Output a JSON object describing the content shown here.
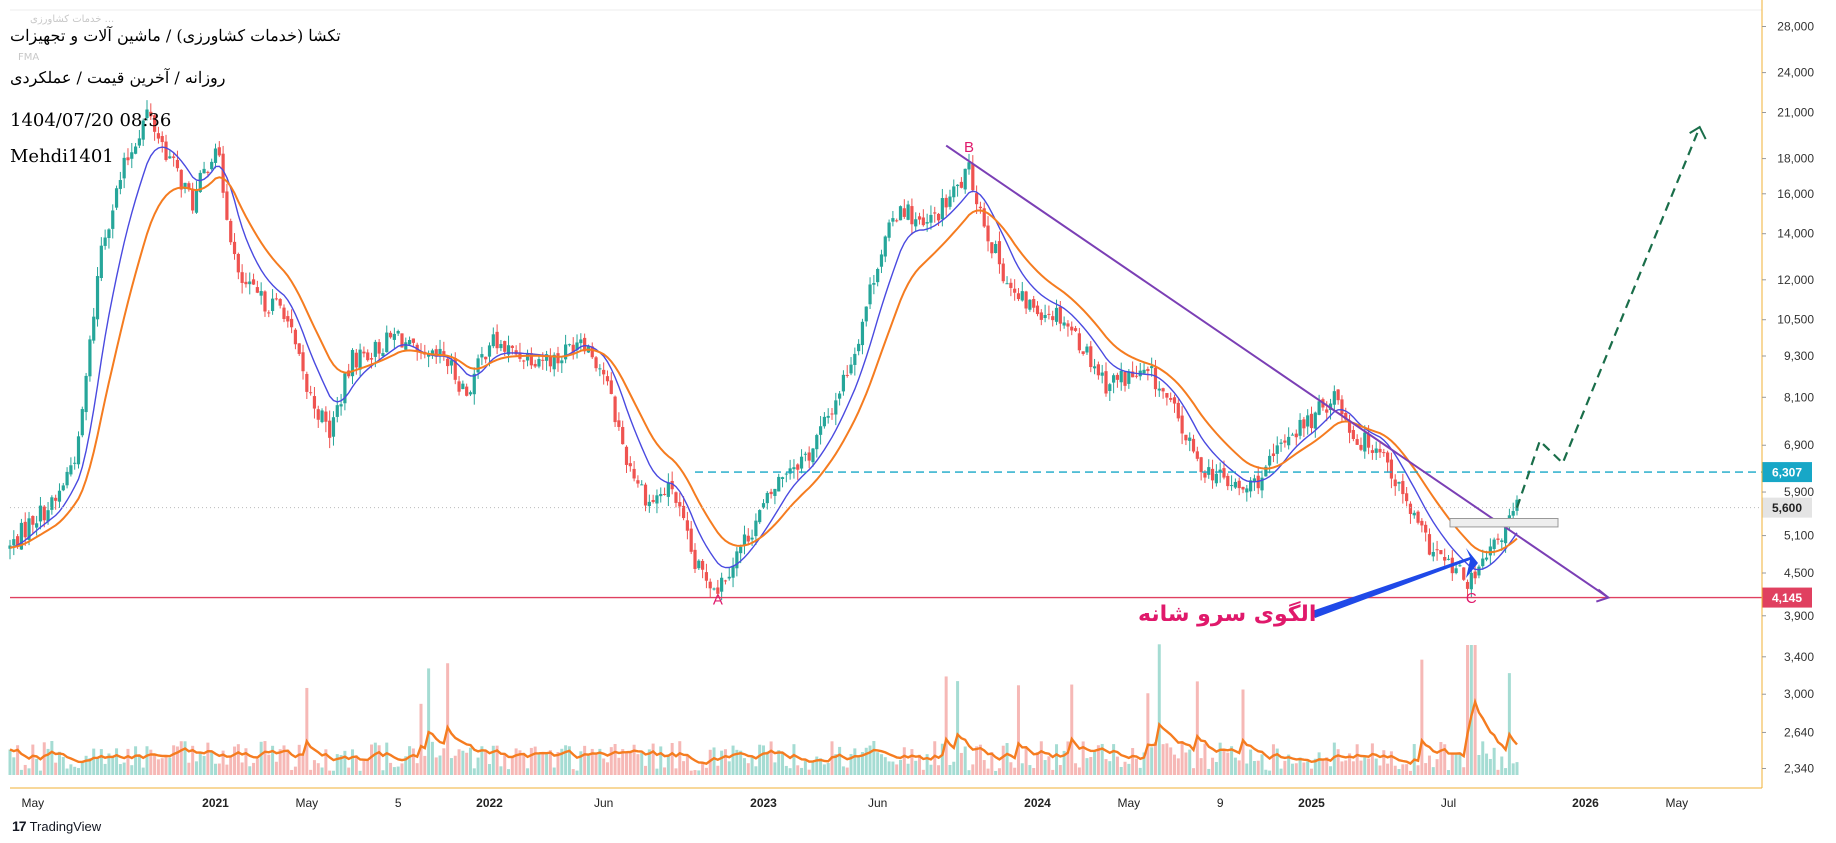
{
  "header": {
    "title": "تکشا (خدمات کشاورزی) / ماشین آلات و تجهیزات",
    "subtitle": "روزانه / آخرین قیمت / عملکردی",
    "datetime": "1404/07/20 08:36",
    "author": "Mehdi1401",
    "faint_label": "خدمات کشاورزی ...",
    "faint_fma": "FMA"
  },
  "footer": {
    "brand_logo": "17",
    "brand": "TradingView"
  },
  "annotations": {
    "pattern_label": "الگوی سرو شانه",
    "point_a": "A",
    "point_b": "B",
    "point_c": "C"
  },
  "price_badges": {
    "resistance": "6,307",
    "current": "5,600",
    "support": "4,145"
  },
  "colors": {
    "up": "#26a69a",
    "down": "#ef5350",
    "ma_short": "#4a4ae0",
    "ma_long": "#f57c20",
    "trendline": "#7b3fb5",
    "resistance": "#17a7c7",
    "support": "#e04060",
    "forecast": "#1a6e4a",
    "annotation": "#e0196b",
    "arrow": "#1f49e8"
  },
  "chart_data": {
    "type": "candlestick",
    "y_scale": "log",
    "y_ticks": [
      "28,000",
      "24,000",
      "21,000",
      "18,000",
      "16,000",
      "14,000",
      "12,000",
      "10,500",
      "9,300",
      "8,100",
      "6,900",
      "5,900",
      "5,100",
      "4,500",
      "3,900",
      "3,400",
      "3,000",
      "2,640",
      "2,340"
    ],
    "x_ticks": [
      "May",
      "2021",
      "May",
      "5",
      "2022",
      "Jun",
      "2023",
      "Jun",
      "2024",
      "May",
      "9",
      "2025",
      "Jul",
      "2026",
      "May"
    ],
    "price_path": [
      {
        "date": "2020-04",
        "price": 4900
      },
      {
        "date": "2020-05",
        "price": 5400
      },
      {
        "date": "2020-06",
        "price": 5700
      },
      {
        "date": "2020-07",
        "price": 6900
      },
      {
        "date": "2020-08",
        "price": 13500
      },
      {
        "date": "2020-09",
        "price": 17500
      },
      {
        "date": "2020-10",
        "price": 21000
      },
      {
        "date": "2020-11",
        "price": 18000
      },
      {
        "date": "2020-12",
        "price": 15500
      },
      {
        "date": "2021-01",
        "price": 19000
      },
      {
        "date": "2021-02",
        "price": 12000
      },
      {
        "date": "2021-03",
        "price": 11200
      },
      {
        "date": "2021-04",
        "price": 10900
      },
      {
        "date": "2021-05",
        "price": 8300
      },
      {
        "date": "2021-06",
        "price": 7200
      },
      {
        "date": "2021-07",
        "price": 9200
      },
      {
        "date": "2021-08",
        "price": 9500
      },
      {
        "date": "2021-09",
        "price": 10000
      },
      {
        "date": "2021-10",
        "price": 9100
      },
      {
        "date": "2021-11",
        "price": 9300
      },
      {
        "date": "2021-12",
        "price": 8200
      },
      {
        "date": "2022-01",
        "price": 9800
      },
      {
        "date": "2022-02",
        "price": 9400
      },
      {
        "date": "2022-03",
        "price": 9300
      },
      {
        "date": "2022-04",
        "price": 9200
      },
      {
        "date": "2022-05",
        "price": 10000
      },
      {
        "date": "2022-06",
        "price": 8800
      },
      {
        "date": "2022-07",
        "price": 6600
      },
      {
        "date": "2022-08",
        "price": 5700
      },
      {
        "date": "2022-09",
        "price": 6000
      },
      {
        "date": "2022-10",
        "price": 4600
      },
      {
        "date": "2022-11",
        "price": 4300
      },
      {
        "date": "2022-12",
        "price": 4900
      },
      {
        "date": "2023-01",
        "price": 5600
      },
      {
        "date": "2023-02",
        "price": 6400
      },
      {
        "date": "2023-03",
        "price": 6700
      },
      {
        "date": "2023-04",
        "price": 7800
      },
      {
        "date": "2023-05",
        "price": 9500
      },
      {
        "date": "2023-06",
        "price": 12800
      },
      {
        "date": "2023-07",
        "price": 15500
      },
      {
        "date": "2023-08",
        "price": 14200
      },
      {
        "date": "2023-09",
        "price": 15500
      },
      {
        "date": "2023-10",
        "price": 17200
      },
      {
        "date": "2023-11",
        "price": 13500
      },
      {
        "date": "2023-12",
        "price": 11300
      },
      {
        "date": "2024-01",
        "price": 10900
      },
      {
        "date": "2024-02",
        "price": 10700
      },
      {
        "date": "2024-03",
        "price": 9600
      },
      {
        "date": "2024-04",
        "price": 8500
      },
      {
        "date": "2024-05",
        "price": 8700
      },
      {
        "date": "2024-06",
        "price": 8700
      },
      {
        "date": "2024-07",
        "price": 7700
      },
      {
        "date": "2024-08",
        "price": 6500
      },
      {
        "date": "2024-09",
        "price": 6200
      },
      {
        "date": "2024-10",
        "price": 5900
      },
      {
        "date": "2024-11",
        "price": 6300
      },
      {
        "date": "2024-12",
        "price": 7200
      },
      {
        "date": "2025-01",
        "price": 7500
      },
      {
        "date": "2025-02",
        "price": 8200
      },
      {
        "date": "2025-03",
        "price": 7000
      },
      {
        "date": "2025-04",
        "price": 6900
      },
      {
        "date": "2025-05",
        "price": 5800
      },
      {
        "date": "2025-06",
        "price": 5000
      },
      {
        "date": "2025-07",
        "price": 4600
      },
      {
        "date": "2025-08",
        "price": 4350
      },
      {
        "date": "2025-09",
        "price": 4900
      },
      {
        "date": "2025-10",
        "price": 5600
      }
    ],
    "levels": [
      {
        "label": "6,307",
        "value": 6307,
        "style": "dashed"
      },
      {
        "label": "5,600",
        "value": 5600,
        "style": "dotted"
      },
      {
        "label": "4,145",
        "value": 4145,
        "style": "solid"
      }
    ],
    "trendline": [
      {
        "date": "2023-09",
        "price": 18800
      },
      {
        "date": "2026-02",
        "price": 4145
      }
    ],
    "forecast_path": [
      {
        "date": "2025-10",
        "price": 5600
      },
      {
        "date": "2025-11",
        "price": 7000
      },
      {
        "date": "2025-12",
        "price": 6500
      },
      {
        "date": "2026-06",
        "price": 20000
      }
    ],
    "points": [
      {
        "label": "A",
        "date": "2022-11",
        "price": 4300
      },
      {
        "label": "B",
        "date": "2023-10",
        "price": 17200
      },
      {
        "label": "C",
        "date": "2025-08",
        "price": 4350
      }
    ]
  }
}
